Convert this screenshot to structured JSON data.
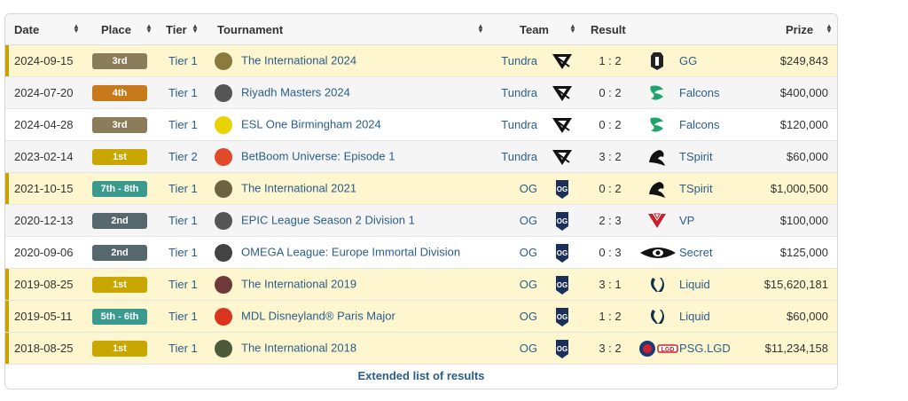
{
  "headers": {
    "date": "Date",
    "place": "Place",
    "tier": "Tier",
    "tournament": "Tournament",
    "team": "Team",
    "result": "Result",
    "prize": "Prize"
  },
  "rows": [
    {
      "date": "2024-09-15",
      "place": "3rd",
      "place_color": "#8b7d5a",
      "tier": "Tier 1",
      "tournament": "The International 2024",
      "t_icon": "international-aegis-icon",
      "t_color": "#8a7a3e",
      "team": "Tundra",
      "team_icon": "tundra-logo-icon",
      "result": "1 : 2",
      "opponent": "GG",
      "opp_icon": "gg-logo-icon",
      "prize": "$249,843",
      "style": "hl"
    },
    {
      "date": "2024-07-20",
      "place": "4th",
      "place_color": "#c87a1a",
      "tier": "Tier 1",
      "tournament": "Riyadh Masters 2024",
      "t_icon": "riyadh-masters-icon",
      "t_color": "#555555",
      "team": "Tundra",
      "team_icon": "tundra-logo-icon",
      "result": "0 : 2",
      "opponent": "Falcons",
      "opp_icon": "falcons-logo-icon",
      "prize": "$400,000",
      "style": "gr"
    },
    {
      "date": "2024-04-28",
      "place": "3rd",
      "place_color": "#8b7d5a",
      "tier": "Tier 1",
      "tournament": "ESL One Birmingham 2024",
      "t_icon": "esl-one-icon",
      "t_color": "#e8d200",
      "team": "Tundra",
      "team_icon": "tundra-logo-icon",
      "result": "0 : 2",
      "opponent": "Falcons",
      "opp_icon": "falcons-logo-icon",
      "prize": "$120,000",
      "style": "wh"
    },
    {
      "date": "2023-02-14",
      "place": "1st",
      "place_color": "#c9a600",
      "tier": "Tier 2",
      "tournament": "BetBoom Universe: Episode 1",
      "t_icon": "betboom-icon",
      "t_color": "#e04a2a",
      "team": "Tundra",
      "team_icon": "tundra-logo-icon",
      "result": "3 : 2",
      "opponent": "TSpirit",
      "opp_icon": "tspirit-logo-icon",
      "prize": "$60,000",
      "style": "gr"
    },
    {
      "date": "2021-10-15",
      "place": "7th - 8th",
      "place_color": "#3a9a8e",
      "tier": "Tier 1",
      "tournament": "The International 2021",
      "t_icon": "international-aegis-icon",
      "t_color": "#6f6240",
      "team": "OG",
      "team_icon": "og-logo-icon",
      "result": "0 : 2",
      "opponent": "TSpirit",
      "opp_icon": "tspirit-logo-icon",
      "prize": "$1,000,500",
      "style": "hl"
    },
    {
      "date": "2020-12-13",
      "place": "2nd",
      "place_color": "#56676e",
      "tier": "Tier 1",
      "tournament": "EPIC League Season 2 Division 1",
      "t_icon": "epic-league-icon",
      "t_color": "#555555",
      "team": "OG",
      "team_icon": "og-logo-icon",
      "result": "2 : 3",
      "opponent": "VP",
      "opp_icon": "vp-logo-icon",
      "prize": "$100,000",
      "style": "gr"
    },
    {
      "date": "2020-09-06",
      "place": "2nd",
      "place_color": "#56676e",
      "tier": "Tier 1",
      "tournament": "OMEGA League: Europe Immortal Division",
      "t_icon": "omega-league-icon",
      "t_color": "#444444",
      "team": "OG",
      "team_icon": "og-logo-icon",
      "result": "0 : 3",
      "opponent": "Secret",
      "opp_icon": "secret-logo-icon",
      "prize": "$125,000",
      "style": "wh"
    },
    {
      "date": "2019-08-25",
      "place": "1st",
      "place_color": "#c9a600",
      "tier": "Tier 1",
      "tournament": "The International 2019",
      "t_icon": "international-aegis-icon",
      "t_color": "#6e3a3a",
      "team": "OG",
      "team_icon": "og-logo-icon",
      "result": "3 : 1",
      "opponent": "Liquid",
      "opp_icon": "liquid-logo-icon",
      "prize": "$15,620,181",
      "style": "hl"
    },
    {
      "date": "2019-05-11",
      "place": "5th - 6th",
      "place_color": "#3a9a8e",
      "tier": "Tier 1",
      "tournament": "MDL Disneyland® Paris Major",
      "t_icon": "mdl-icon",
      "t_color": "#d8341e",
      "team": "OG",
      "team_icon": "og-logo-icon",
      "result": "1 : 2",
      "opponent": "Liquid",
      "opp_icon": "liquid-logo-icon",
      "prize": "$60,000",
      "style": "hl"
    },
    {
      "date": "2018-08-25",
      "place": "1st",
      "place_color": "#c9a600",
      "tier": "Tier 1",
      "tournament": "The International 2018",
      "t_icon": "international-aegis-icon",
      "t_color": "#4a5a3a",
      "team": "OG",
      "team_icon": "og-logo-icon",
      "result": "3 : 2",
      "opponent": "PSG.LGD",
      "opp_icon": "psg-lgd-logo-icon",
      "prize": "$11,234,158",
      "style": "hl"
    }
  ],
  "footer": {
    "link": "Extended list of results"
  }
}
